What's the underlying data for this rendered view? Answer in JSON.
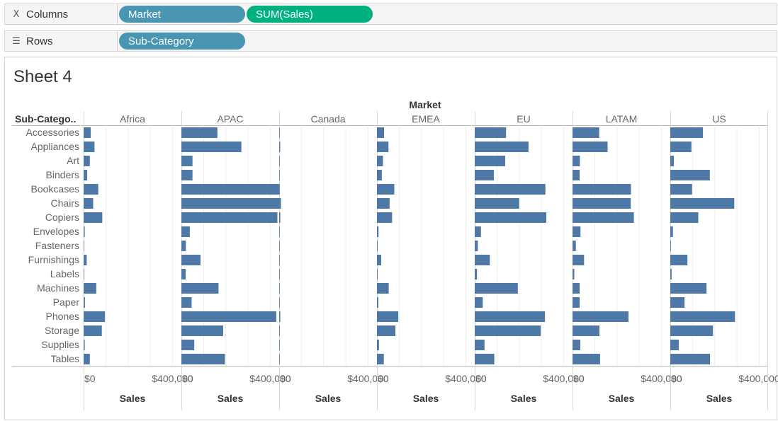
{
  "shelves": {
    "columns": {
      "label": "Columns",
      "icon": "columns-icon",
      "pills": [
        {
          "text": "Market",
          "kind": "dimension"
        },
        {
          "text": "SUM(Sales)",
          "kind": "measure"
        }
      ]
    },
    "rows": {
      "label": "Rows",
      "icon": "rows-icon",
      "pills": [
        {
          "text": "Sub-Category",
          "kind": "dimension"
        }
      ]
    }
  },
  "sheet": {
    "title": "Sheet 4"
  },
  "colors": {
    "bar": "#4e79a7",
    "dimension_pill": "#4996b2",
    "measure_pill": "#00b180"
  },
  "chart_data": {
    "type": "bar",
    "orientation": "horizontal",
    "column_header": "Market",
    "row_header": "Sub-Catego..",
    "xlabel": "Sales",
    "xticks": [
      "$0",
      "$400,000"
    ],
    "xlim": [
      0,
      440000
    ],
    "grid": true,
    "markets": [
      "Africa",
      "APAC",
      "Canada",
      "EMEA",
      "EU",
      "LATAM",
      "US"
    ],
    "categories": [
      "Accessories",
      "Appliances",
      "Art",
      "Binders",
      "Bookcases",
      "Chairs",
      "Copiers",
      "Envelopes",
      "Fasteners",
      "Furnishings",
      "Labels",
      "Machines",
      "Paper",
      "Phones",
      "Storage",
      "Supplies",
      "Tables"
    ],
    "series": [
      {
        "market": "Africa",
        "values": [
          32000,
          49000,
          28000,
          16000,
          66000,
          43000,
          84000,
          5000,
          1500,
          14000,
          2000,
          57000,
          6000,
          96000,
          82000,
          5000,
          28000
        ]
      },
      {
        "market": "APAC",
        "values": [
          162000,
          270000,
          50000,
          50000,
          441000,
          448000,
          432000,
          38000,
          20000,
          86000,
          19000,
          167000,
          46000,
          427000,
          188000,
          58000,
          196000
        ]
      },
      {
        "market": "Canada",
        "values": [
          1500,
          4500,
          1500,
          1000,
          2000,
          3000,
          5000,
          500,
          300,
          1000,
          400,
          1500,
          700,
          5000,
          3000,
          600,
          1000
        ]
      },
      {
        "market": "EMEA",
        "values": [
          32000,
          52000,
          27000,
          22000,
          78000,
          57000,
          68000,
          7000,
          3000,
          19000,
          3000,
          53000,
          6000,
          96000,
          83000,
          9000,
          31000
        ]
      },
      {
        "market": "EU",
        "values": [
          141000,
          242000,
          137000,
          86000,
          318000,
          200000,
          322000,
          28000,
          14000,
          68000,
          10000,
          194000,
          36000,
          316000,
          297000,
          44000,
          88000
        ]
      },
      {
        "market": "LATAM",
        "values": [
          120000,
          158000,
          33000,
          32000,
          263000,
          262000,
          276000,
          36000,
          15000,
          52000,
          8000,
          32000,
          32000,
          252000,
          121000,
          35000,
          124000
        ]
      },
      {
        "market": "US",
        "values": [
          147000,
          95000,
          16000,
          178000,
          98000,
          288000,
          126000,
          12000,
          3000,
          77000,
          6000,
          163000,
          64000,
          291000,
          192000,
          38000,
          179000
        ]
      }
    ]
  }
}
